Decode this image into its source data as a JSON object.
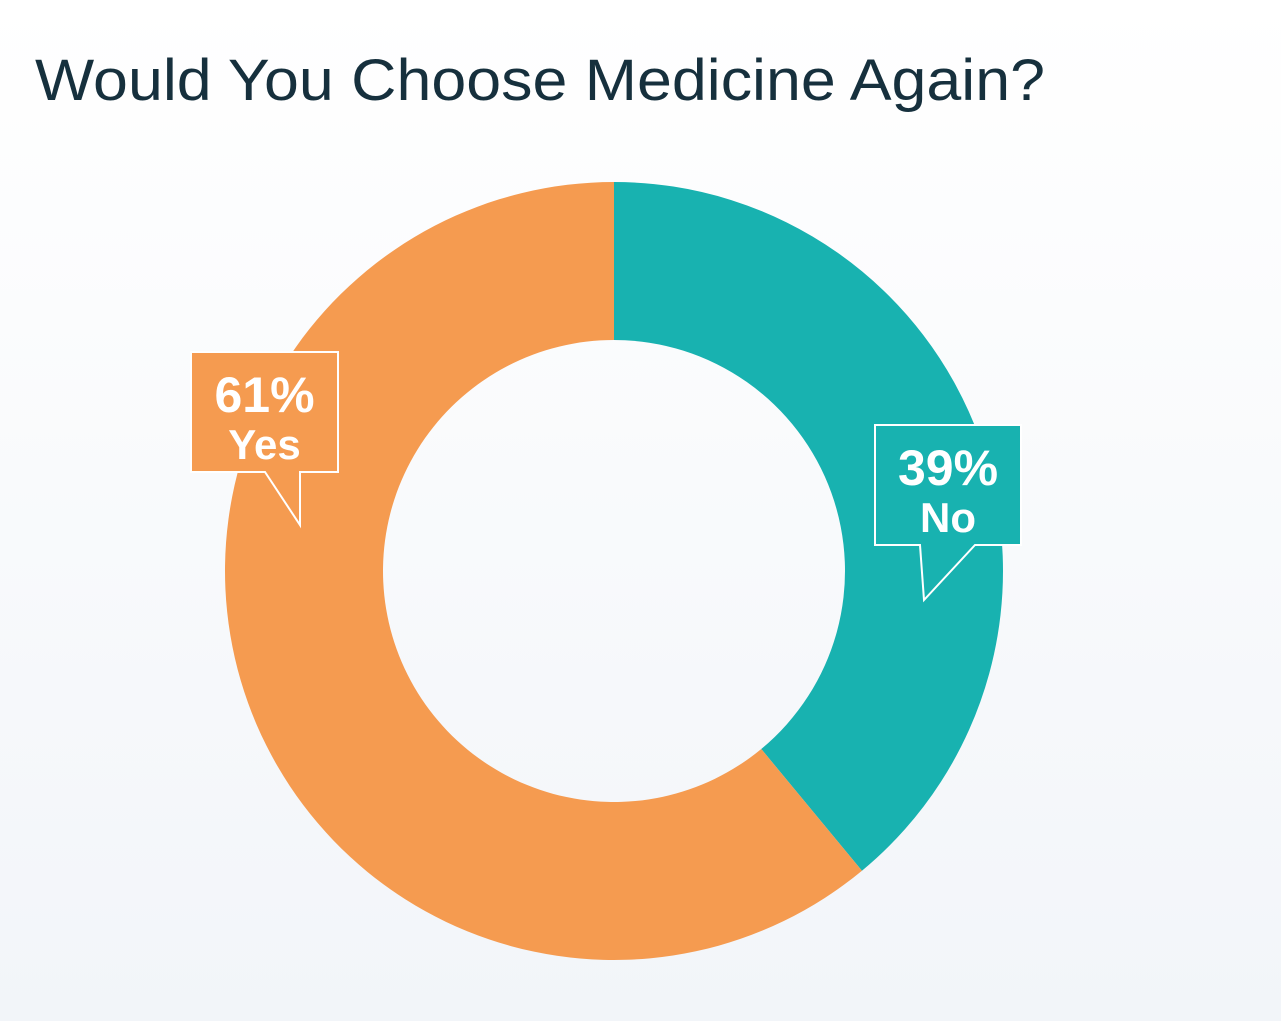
{
  "chart_data": {
    "type": "donut",
    "title": "Would You Choose Medicine Again?",
    "categories": [
      "No",
      "Yes"
    ],
    "values": [
      39,
      61
    ],
    "value_labels": [
      "39%",
      "61%"
    ],
    "colors": [
      "#18b2b0",
      "#f59b50"
    ]
  }
}
